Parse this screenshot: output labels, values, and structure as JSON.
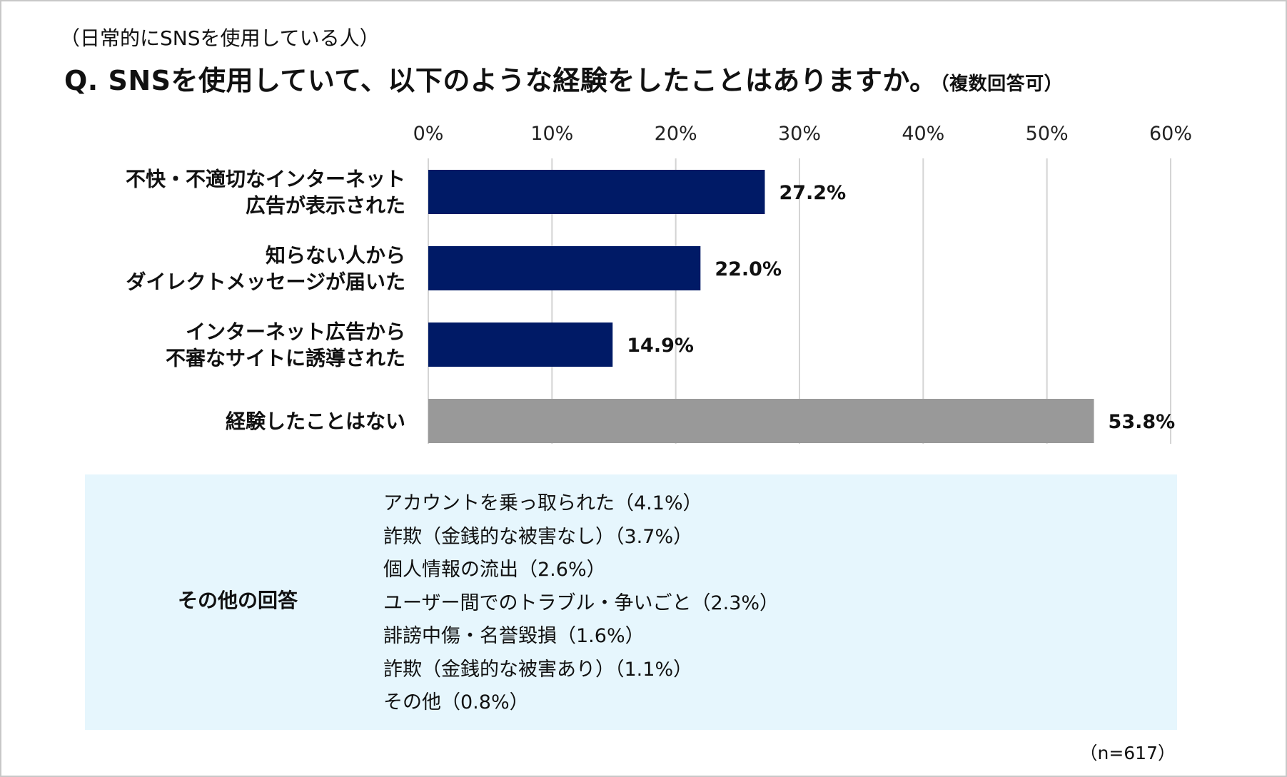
{
  "header": {
    "subtitle": "（日常的にSNSを使用している人）",
    "question": "Q. SNSを使用していて、以下のような経験をしたことはありますか。",
    "note": "（複数回答可）"
  },
  "chart_data": {
    "type": "bar",
    "orientation": "horizontal",
    "categories": [
      [
        "不快・不適切なインターネット",
        "広告が表示された"
      ],
      [
        "知らない人から",
        "ダイレクトメッセージが届いた"
      ],
      [
        "インターネット広告から",
        "不審なサイトに誘導された"
      ],
      [
        "経験したことはない"
      ]
    ],
    "values": [
      27.2,
      22.0,
      14.9,
      53.8
    ],
    "value_labels": [
      "27.2%",
      "22.0%",
      "14.9%",
      "53.8%"
    ],
    "bar_colors": [
      "#001a66",
      "#001a66",
      "#001a66",
      "#999999"
    ],
    "xlim": [
      0,
      60
    ],
    "x_ticks": [
      "0%",
      "10%",
      "20%",
      "30%",
      "40%",
      "50%",
      "60%"
    ],
    "grid": true,
    "axis_position": "top"
  },
  "others": {
    "heading": "その他の回答",
    "items": [
      "アカウントを乗っ取られた（4.1%）",
      "詐欺（金銭的な被害なし）（3.7%）",
      "個人情報の流出（2.6%）",
      "ユーザー間でのトラブル・争いごと（2.3%）",
      "誹謗中傷・名誉毀損（1.6%）",
      "詐欺（金銭的な被害あり）（1.1%）",
      "その他（0.8%）"
    ]
  },
  "footer": {
    "sample_size": "（n=617）"
  },
  "colors": {
    "bar_primary": "#001a66",
    "bar_none": "#999999",
    "gridline": "#d4d4d4",
    "other_box_bg": "#e6f6fd"
  }
}
